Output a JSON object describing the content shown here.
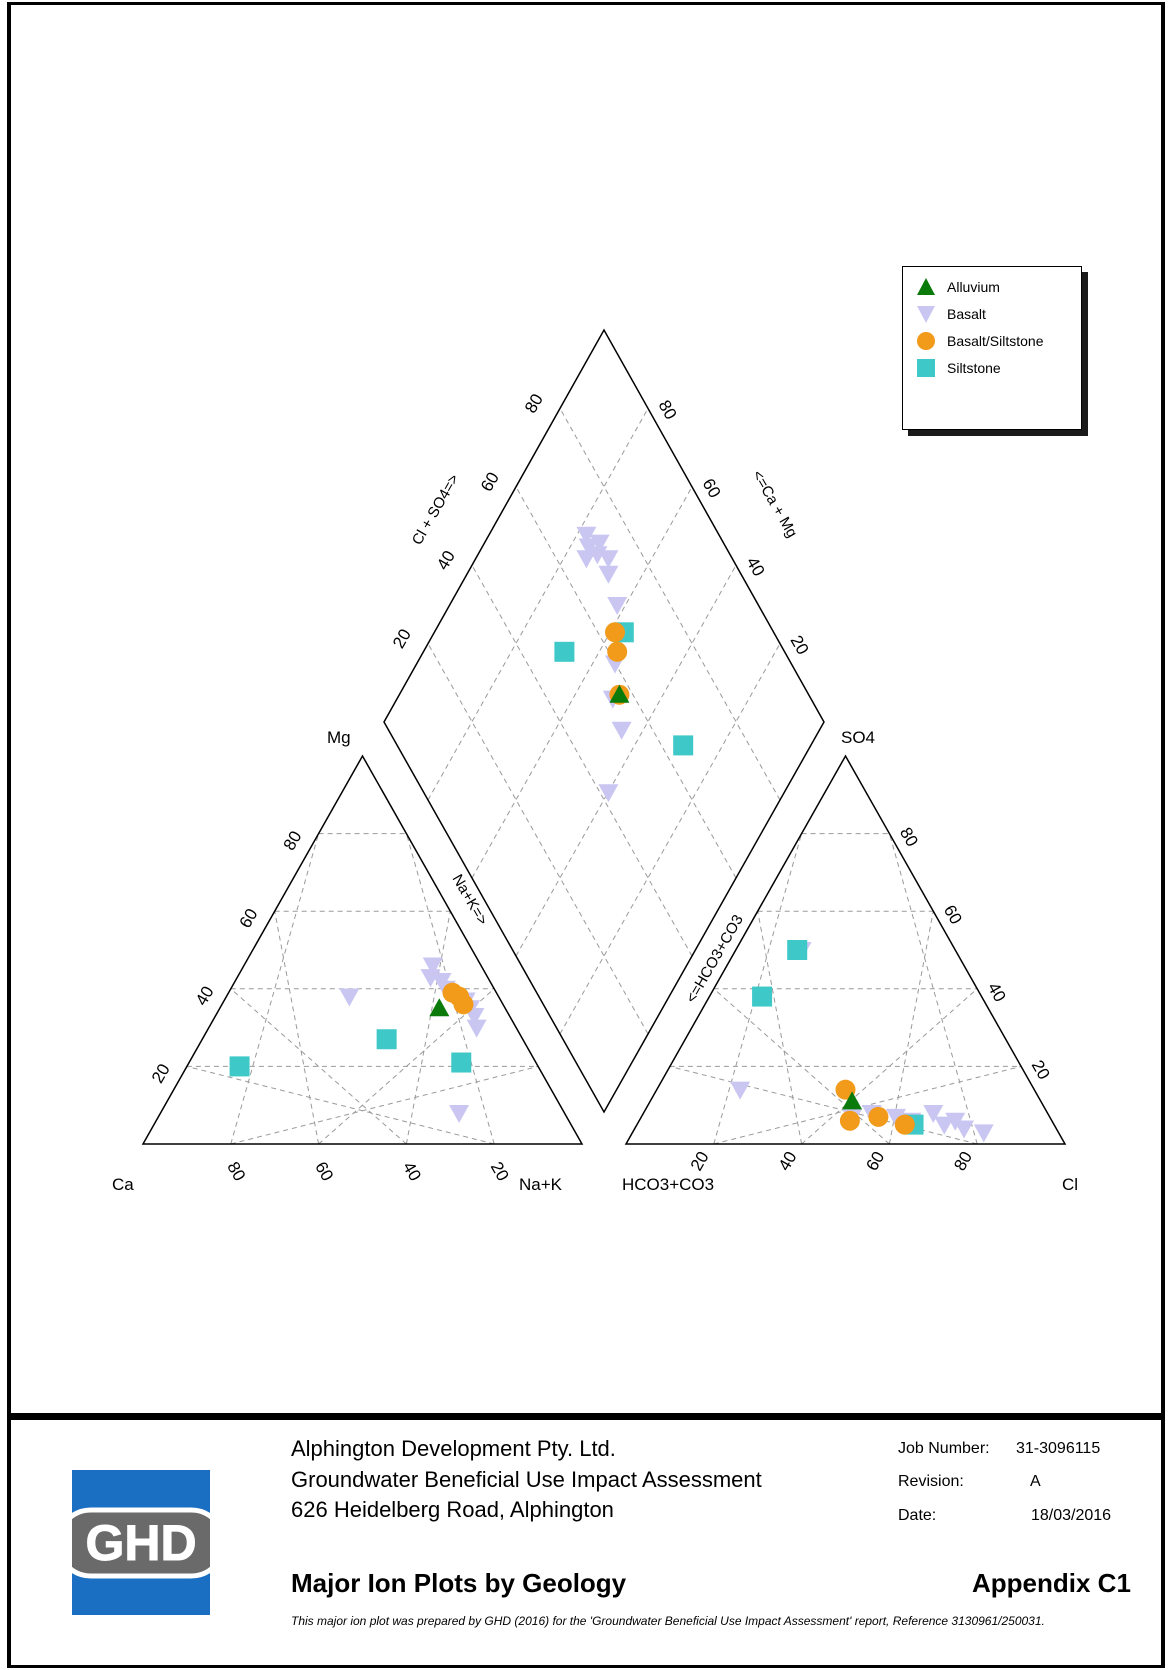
{
  "chart_data": {
    "type": "scatter",
    "subtype": "piper-diagram",
    "legend": {
      "placement": "top-right",
      "entries": [
        {
          "name": "Alluvium",
          "marker": "triangle-up",
          "color": "#0a7a0a"
        },
        {
          "name": "Basalt",
          "marker": "triangle-down",
          "color": "#c9c6f2"
        },
        {
          "name": "Basalt/Siltstone",
          "marker": "circle",
          "color": "#f29a1a"
        },
        {
          "name": "Siltstone",
          "marker": "square",
          "color": "#3ec8c8"
        }
      ]
    },
    "cation_triangle": {
      "vertex_labels": {
        "left": "Ca",
        "top": "Mg",
        "right": "Na+K"
      },
      "edge_label": "Na+K=>",
      "ticks_bottom": [
        "80",
        "60",
        "40",
        "20"
      ],
      "ticks_left": [
        "20",
        "40",
        "60",
        "80"
      ],
      "series": [
        {
          "name": "Alluvium",
          "points": [
            {
              "mg": 35,
              "nak": 50
            }
          ]
        },
        {
          "name": "Basalt",
          "points": [
            {
              "mg": 46,
              "nak": 43
            },
            {
              "mg": 42,
              "nak": 47
            },
            {
              "mg": 40,
              "nak": 49
            },
            {
              "mg": 37,
              "nak": 55
            },
            {
              "mg": 35,
              "nak": 57
            },
            {
              "mg": 33,
              "nak": 59
            },
            {
              "mg": 38,
              "nak": 28
            },
            {
              "mg": 8,
              "nak": 68
            },
            {
              "mg": 30,
              "nak": 61
            },
            {
              "mg": 43,
              "nak": 44
            }
          ]
        },
        {
          "name": "Basalt/Siltstone",
          "points": [
            {
              "mg": 39,
              "nak": 51
            },
            {
              "mg": 36,
              "nak": 55
            },
            {
              "mg": 38,
              "nak": 53
            }
          ]
        },
        {
          "name": "Siltstone",
          "points": [
            {
              "mg": 20,
              "nak": 12
            },
            {
              "mg": 27,
              "nak": 42
            },
            {
              "mg": 21,
              "nak": 62
            }
          ]
        }
      ]
    },
    "anion_triangle": {
      "vertex_labels": {
        "left": "HCO3+CO3",
        "top": "SO4",
        "right": "Cl"
      },
      "edge_label": "<=HCO3+CO3",
      "ticks_bottom": [
        "20",
        "40",
        "60",
        "80"
      ],
      "ticks_right": [
        "20",
        "40",
        "60",
        "80"
      ],
      "series": [
        {
          "name": "Alluvium",
          "points": [
            {
              "so4": 11,
              "cl": 46
            }
          ]
        },
        {
          "name": "Basalt",
          "points": [
            {
              "so4": 50,
              "cl": 15
            },
            {
              "so4": 14,
              "cl": 19
            },
            {
              "so4": 8,
              "cl": 52
            },
            {
              "so4": 7,
              "cl": 58
            },
            {
              "so4": 6,
              "cl": 62
            },
            {
              "so4": 8,
              "cl": 66
            },
            {
              "so4": 6,
              "cl": 72
            },
            {
              "so4": 4,
              "cl": 75
            },
            {
              "so4": 3,
              "cl": 80
            },
            {
              "so4": 7,
              "cl": 48
            },
            {
              "so4": 5,
              "cl": 70
            }
          ]
        },
        {
          "name": "Basalt/Siltstone",
          "points": [
            {
              "so4": 14,
              "cl": 43
            },
            {
              "so4": 6,
              "cl": 48
            },
            {
              "so4": 7,
              "cl": 54
            },
            {
              "so4": 5,
              "cl": 61
            }
          ]
        },
        {
          "name": "Siltstone",
          "points": [
            {
              "so4": 50,
              "cl": 14
            },
            {
              "so4": 38,
              "cl": 12
            },
            {
              "so4": 5,
              "cl": 63
            }
          ]
        }
      ]
    },
    "diamond": {
      "left_edge_label": "Cl + SO4=>",
      "right_edge_label": "<=Ca + Mg",
      "ticks_left": [
        "20",
        "40",
        "60",
        "80"
      ],
      "ticks_right": [
        "20",
        "40",
        "60",
        "80"
      ],
      "series": [
        {
          "name": "Alluvium",
          "points": [
            {
              "cl_so4": 57,
              "ca_mg": 50
            }
          ]
        },
        {
          "name": "Basalt",
          "points": [
            {
              "cl_so4": 70,
              "ca_mg": 32
            },
            {
              "cl_so4": 70,
              "ca_mg": 27
            },
            {
              "cl_so4": 72,
              "ca_mg": 26
            },
            {
              "cl_so4": 69,
              "ca_mg": 24
            },
            {
              "cl_so4": 67,
              "ca_mg": 25
            },
            {
              "cl_so4": 70,
              "ca_mg": 22
            },
            {
              "cl_so4": 68,
              "ca_mg": 38
            },
            {
              "cl_so4": 60,
              "ca_mg": 45
            },
            {
              "cl_so4": 55,
              "ca_mg": 49
            },
            {
              "cl_so4": 53,
              "ca_mg": 55
            },
            {
              "cl_so4": 42,
              "ca_mg": 60
            },
            {
              "cl_so4": 72,
              "ca_mg": 30
            }
          ]
        },
        {
          "name": "Basalt/Siltstone",
          "points": [
            {
              "cl_so4": 62,
              "ca_mg": 44
            },
            {
              "cl_so4": 64,
              "ca_mg": 41
            },
            {
              "cl_so4": 57,
              "ca_mg": 50
            }
          ]
        },
        {
          "name": "Siltstone",
          "points": [
            {
              "cl_so4": 65,
              "ca_mg": 71
            },
            {
              "cl_so4": 66,
              "ca_mg": 43
            },
            {
              "cl_so4": 50,
              "ca_mg": 32
            }
          ]
        }
      ]
    },
    "grid": true
  },
  "title_block": {
    "client": "Alphington Development Pty. Ltd.",
    "project": "Groundwater Beneficial Use Impact Assessment",
    "address": "626 Heidelberg Road, Alphington",
    "job_number_label": "Job Number:",
    "job_number": "31-3096115",
    "revision_label": "Revision:",
    "revision": "A",
    "date_label": "Date:",
    "date": "18/03/2016",
    "title": "Major Ion Plots by Geology",
    "appendix": "Appendix C1",
    "note": "This major ion plot was prepared by GHD (2016) for the 'Groundwater Beneficial Use Impact Assessment' report, Reference 3130961/250031.",
    "logo_text": "GHD"
  },
  "colors": {
    "logo_blue": "#1a6fc2",
    "logo_gray": "#6a6a6a"
  }
}
